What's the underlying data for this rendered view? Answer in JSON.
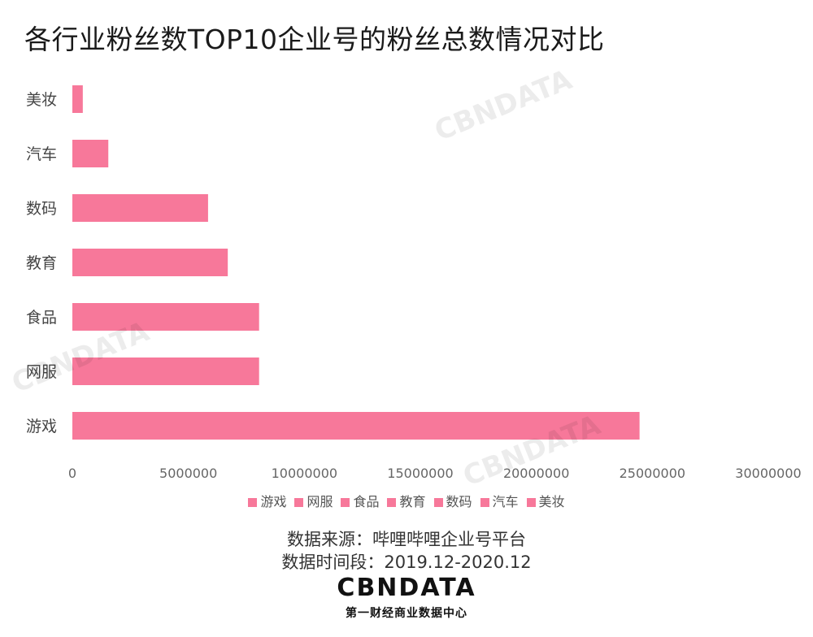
{
  "chart_data": {
    "type": "bar",
    "orientation": "horizontal",
    "title": "各行业粉丝数TOP10企业号的粉丝总数情况对比",
    "categories": [
      "美妆",
      "汽车",
      "数码",
      "教育",
      "食品",
      "网服",
      "游戏"
    ],
    "values": [
      450000,
      1550000,
      5850000,
      6700000,
      8050000,
      8050000,
      24450000
    ],
    "xlim": [
      0,
      30000000
    ],
    "x_ticks": [
      0,
      5000000,
      10000000,
      15000000,
      20000000,
      25000000,
      30000000
    ],
    "x_tick_labels": [
      "0",
      "5000000",
      "10000000",
      "15000000",
      "20000000",
      "25000000",
      "30000000"
    ],
    "grid": false,
    "legend_position": "bottom",
    "legend": [
      "游戏",
      "网服",
      "食品",
      "教育",
      "数码",
      "汽车",
      "美妆"
    ],
    "bar_color": "#F7789A"
  },
  "source": {
    "data_source": "数据来源：哔哩哔哩企业号平台",
    "period": "数据时间段：2019.12-2020.12"
  },
  "logo": {
    "main": "CBNDATA",
    "sub": "第一财经商业数据中心"
  }
}
